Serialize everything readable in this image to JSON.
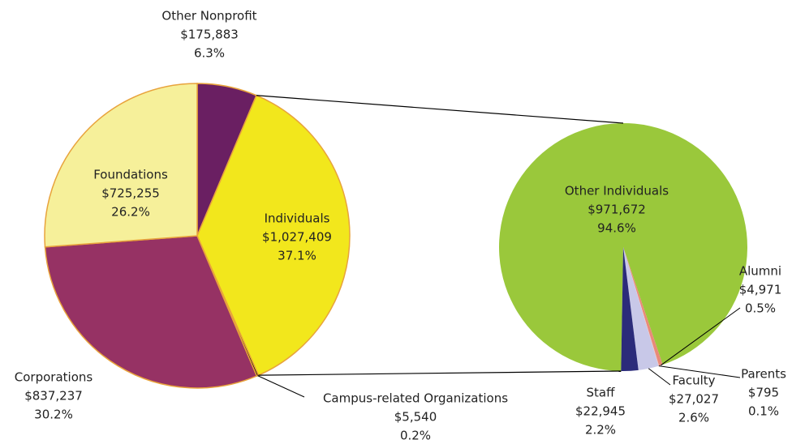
{
  "chart_data": [
    {
      "type": "pie",
      "categories": [
        "Other Nonprofit",
        "Individuals",
        "Campus-related Organizations",
        "Corporations",
        "Foundations"
      ],
      "values": [
        175883,
        1027409,
        5540,
        837237,
        725255
      ],
      "value_labels": [
        "$175,883",
        "$1,027,409",
        "$5,540",
        "$837,237",
        "$725,255"
      ],
      "percents": [
        6.3,
        37.1,
        0.2,
        30.2,
        26.2
      ],
      "percent_labels": [
        "6.3%",
        "37.1%",
        "0.2%",
        "30.2%",
        "26.2%"
      ],
      "colors": [
        "#6a1f62",
        "#f2e71c",
        "#000000",
        "#963264",
        "#f6f09a"
      ]
    },
    {
      "type": "pie",
      "categories": [
        "Other Individuals",
        "Alumni",
        "Parents",
        "Faculty",
        "Staff"
      ],
      "values": [
        971672,
        4971,
        795,
        27027,
        22945
      ],
      "value_labels": [
        "$971,672",
        "$4,971",
        "$795",
        "$27,027",
        "$22,945"
      ],
      "percents": [
        94.6,
        0.5,
        0.1,
        2.6,
        2.2
      ],
      "percent_labels": [
        "94.6%",
        "0.5%",
        "0.1%",
        "2.6%",
        "2.2%"
      ],
      "colors": [
        "#9ac83b",
        "#e88a7a",
        "#f0c0c0",
        "#c8c8e8",
        "#2b2b7a"
      ]
    }
  ]
}
